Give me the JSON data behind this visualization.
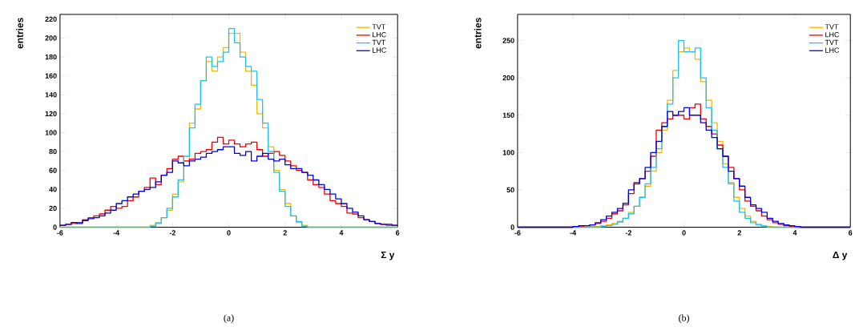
{
  "chart_data": [
    {
      "type": "histogram",
      "xlabel": "Σ y",
      "ylabel": "entries",
      "xlim": [
        -6,
        6
      ],
      "ylim": [
        0,
        225
      ],
      "xticks": [
        -6,
        -4,
        -2,
        0,
        2,
        4,
        6
      ],
      "yticks": [
        0,
        20,
        40,
        60,
        80,
        100,
        120,
        140,
        160,
        180,
        200,
        220
      ],
      "legend": "top right",
      "annotations": [
        "(a)"
      ],
      "bins": [
        -6.0,
        -5.8,
        -5.6,
        -5.4,
        -5.2,
        -5.0,
        -4.8,
        -4.6,
        -4.4,
        -4.2,
        -4.0,
        -3.8,
        -3.6,
        -3.4,
        -3.2,
        -3.0,
        -2.8,
        -2.6,
        -2.4,
        -2.2,
        -2.0,
        -1.8,
        -1.6,
        -1.4,
        -1.2,
        -1.0,
        -0.8,
        -0.6,
        -0.4,
        -0.2,
        0.0,
        0.2,
        0.4,
        0.6,
        0.8,
        1.0,
        1.2,
        1.4,
        1.6,
        1.8,
        2.0,
        2.2,
        2.4,
        2.6,
        2.8,
        3.0,
        3.2,
        3.4,
        3.6,
        3.8,
        4.0,
        4.2,
        4.4,
        4.6,
        4.8,
        5.0,
        5.2,
        5.4,
        5.6,
        5.8,
        6.0
      ],
      "series": [
        {
          "name": "TVT",
          "color": "#f5b800",
          "values": [
            0,
            0,
            0,
            0,
            0,
            0,
            0,
            0,
            0,
            0,
            0,
            0,
            0,
            0,
            0,
            0,
            2,
            5,
            10,
            18,
            35,
            48,
            70,
            110,
            125,
            155,
            175,
            165,
            180,
            190,
            205,
            205,
            185,
            165,
            150,
            120,
            105,
            85,
            60,
            40,
            25,
            12,
            5,
            2,
            0,
            0,
            0,
            0,
            0,
            0,
            0,
            0,
            0,
            0,
            0,
            0,
            0,
            0,
            0,
            0
          ]
        },
        {
          "name": "LHC",
          "color": "#f00000",
          "values": [
            2,
            3,
            4,
            5,
            8,
            10,
            12,
            14,
            18,
            22,
            20,
            22,
            28,
            32,
            38,
            42,
            52,
            45,
            55,
            62,
            72,
            75,
            70,
            72,
            78,
            80,
            82,
            90,
            95,
            88,
            92,
            88,
            85,
            88,
            90,
            82,
            75,
            78,
            80,
            76,
            70,
            65,
            60,
            58,
            50,
            45,
            42,
            35,
            28,
            25,
            22,
            15,
            14,
            10,
            8,
            6,
            4,
            3,
            2,
            2
          ]
        },
        {
          "name": "TVT",
          "color": "#1ec0f0",
          "values": [
            0,
            0,
            0,
            0,
            0,
            0,
            0,
            0,
            0,
            0,
            0,
            0,
            0,
            0,
            0,
            0,
            1,
            4,
            10,
            20,
            32,
            50,
            75,
            105,
            130,
            155,
            180,
            170,
            175,
            185,
            210,
            195,
            180,
            170,
            165,
            135,
            110,
            80,
            58,
            38,
            22,
            12,
            6,
            1,
            0,
            0,
            0,
            0,
            0,
            0,
            0,
            0,
            0,
            0,
            0,
            0,
            0,
            0,
            0,
            0
          ]
        },
        {
          "name": "LHC",
          "color": "#0000e0",
          "values": [
            2,
            3,
            5,
            4,
            7,
            9,
            10,
            12,
            15,
            18,
            25,
            28,
            32,
            35,
            38,
            40,
            42,
            48,
            55,
            58,
            70,
            68,
            65,
            70,
            72,
            74,
            78,
            80,
            82,
            85,
            85,
            78,
            76,
            80,
            70,
            75,
            78,
            72,
            70,
            72,
            66,
            62,
            62,
            58,
            55,
            50,
            45,
            40,
            35,
            30,
            25,
            20,
            16,
            12,
            8,
            6,
            4,
            3,
            3,
            2
          ]
        }
      ]
    },
    {
      "type": "histogram",
      "xlabel": "Δ y",
      "ylabel": "entries",
      "xlim": [
        -6,
        6
      ],
      "ylim": [
        0,
        285
      ],
      "xticks": [
        -6,
        -4,
        -2,
        0,
        2,
        4,
        6
      ],
      "yticks": [
        0,
        50,
        100,
        150,
        200,
        250
      ],
      "legend": "top right",
      "annotations": [
        "(b)"
      ],
      "bins": [
        -6.0,
        -5.8,
        -5.6,
        -5.4,
        -5.2,
        -5.0,
        -4.8,
        -4.6,
        -4.4,
        -4.2,
        -4.0,
        -3.8,
        -3.6,
        -3.4,
        -3.2,
        -3.0,
        -2.8,
        -2.6,
        -2.4,
        -2.2,
        -2.0,
        -1.8,
        -1.6,
        -1.4,
        -1.2,
        -1.0,
        -0.8,
        -0.6,
        -0.4,
        -0.2,
        0.0,
        0.2,
        0.4,
        0.6,
        0.8,
        1.0,
        1.2,
        1.4,
        1.6,
        1.8,
        2.0,
        2.2,
        2.4,
        2.6,
        2.8,
        3.0,
        3.2,
        3.4,
        3.6,
        3.8,
        4.0,
        4.2,
        4.4,
        4.6,
        4.8,
        5.0,
        5.2,
        5.4,
        5.6,
        5.8,
        6.0
      ],
      "series": [
        {
          "name": "TVT",
          "color": "#f5b800",
          "values": [
            0,
            0,
            0,
            0,
            0,
            0,
            0,
            0,
            0,
            0,
            0,
            0,
            0,
            1,
            1,
            2,
            3,
            5,
            8,
            12,
            20,
            28,
            40,
            55,
            75,
            100,
            130,
            170,
            210,
            235,
            240,
            235,
            225,
            195,
            170,
            140,
            115,
            85,
            60,
            40,
            25,
            15,
            8,
            4,
            2,
            1,
            0,
            0,
            0,
            0,
            0,
            0,
            0,
            0,
            0,
            0,
            0,
            0,
            0,
            0
          ]
        },
        {
          "name": "LHC",
          "color": "#f00000",
          "values": [
            0,
            0,
            0,
            0,
            0,
            0,
            0,
            0,
            0,
            0,
            1,
            1,
            2,
            3,
            5,
            8,
            12,
            18,
            22,
            30,
            45,
            60,
            65,
            75,
            95,
            130,
            140,
            145,
            150,
            150,
            145,
            160,
            165,
            145,
            135,
            125,
            110,
            95,
            80,
            65,
            50,
            35,
            28,
            22,
            15,
            10,
            6,
            4,
            2,
            1,
            0,
            0,
            0,
            0,
            0,
            0,
            0,
            0,
            0,
            0
          ]
        },
        {
          "name": "TVT",
          "color": "#1ec0f0",
          "values": [
            0,
            0,
            0,
            0,
            0,
            0,
            0,
            0,
            0,
            0,
            0,
            0,
            0,
            0,
            0,
            1,
            2,
            4,
            7,
            12,
            18,
            28,
            40,
            58,
            80,
            105,
            135,
            165,
            200,
            250,
            235,
            235,
            240,
            200,
            160,
            130,
            105,
            80,
            58,
            35,
            20,
            12,
            6,
            3,
            1,
            0,
            0,
            0,
            0,
            0,
            0,
            0,
            0,
            0,
            0,
            0,
            0,
            0,
            0,
            0
          ]
        },
        {
          "name": "LHC",
          "color": "#0000e0",
          "values": [
            0,
            0,
            0,
            0,
            0,
            0,
            0,
            0,
            0,
            0,
            1,
            2,
            2,
            3,
            6,
            10,
            15,
            20,
            25,
            32,
            50,
            58,
            65,
            80,
            100,
            115,
            135,
            155,
            150,
            155,
            160,
            150,
            150,
            140,
            130,
            120,
            105,
            95,
            75,
            65,
            55,
            40,
            30,
            25,
            20,
            12,
            8,
            5,
            3,
            2,
            1,
            0,
            0,
            0,
            0,
            0,
            0,
            0,
            0,
            0
          ]
        }
      ]
    }
  ]
}
